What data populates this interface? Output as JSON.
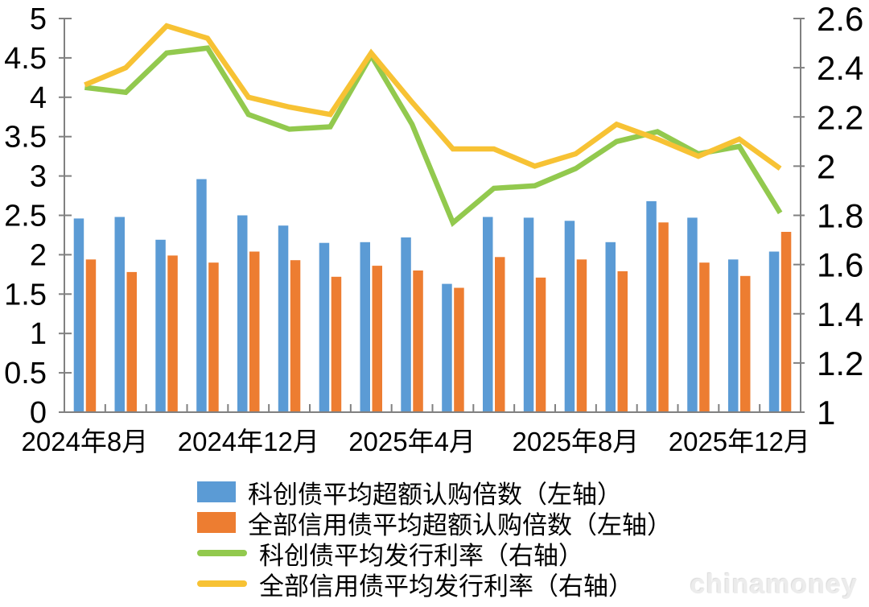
{
  "watermark": "chinamoney",
  "chart_data": {
    "type": "bar+line",
    "dual_axis": true,
    "grid": false,
    "legend_position": "bottom",
    "months": [
      "2024年8月",
      "2024年9月",
      "2024年10月",
      "2024年11月",
      "2024年12月",
      "2025年1月",
      "2025年2月",
      "2025年3月",
      "2025年4月",
      "2025年5月",
      "2025年6月",
      "2025年7月",
      "2025年8月",
      "2025年9月",
      "2025年10月",
      "2025年11月",
      "2025年12月",
      "2026年1月"
    ],
    "x_tick_labels": [
      "2024年8月",
      "2024年12月",
      "2025年4月",
      "2025年8月",
      "2025年12月"
    ],
    "x_tick_label_month_indices": [
      0,
      4,
      8,
      12,
      16
    ],
    "left_axis": {
      "min": 0,
      "max": 5,
      "step": 0.5,
      "ticks": [
        "5",
        "4.5",
        "4",
        "3.5",
        "3",
        "2.5",
        "2",
        "1.5",
        "1",
        "0.5",
        "0"
      ]
    },
    "right_axis": {
      "min": 1,
      "max": 2.6,
      "step": 0.2,
      "ticks": [
        "2.6",
        "2.4",
        "2.2",
        "2",
        "1.8",
        "1.6",
        "1.4",
        "1.2",
        "1"
      ]
    },
    "axis_line_color": "#808080",
    "series": [
      {
        "name": "科创债平均超额认购倍数（左轴）",
        "type": "bar",
        "axis": "left",
        "color": "#5B9BD5",
        "values": [
          2.46,
          2.48,
          2.19,
          2.96,
          2.5,
          2.37,
          2.15,
          2.16,
          2.22,
          1.63,
          2.48,
          2.47,
          2.43,
          2.16,
          2.68,
          2.47,
          1.94,
          2.04
        ]
      },
      {
        "name": "全部信用债平均超额认购倍数（左轴）",
        "type": "bar",
        "axis": "left",
        "color": "#ED7D31",
        "values": [
          1.94,
          1.78,
          1.99,
          1.9,
          2.04,
          1.93,
          1.72,
          1.86,
          1.8,
          1.58,
          1.97,
          1.71,
          1.94,
          1.79,
          2.41,
          1.9,
          1.73,
          2.29
        ]
      },
      {
        "name": "科创债平均发行利率（右轴）",
        "type": "line",
        "axis": "right",
        "color": "#92C94E",
        "values": [
          2.32,
          2.3,
          2.46,
          2.48,
          2.21,
          2.15,
          2.16,
          2.45,
          2.17,
          1.77,
          1.91,
          1.92,
          1.99,
          2.1,
          2.14,
          2.05,
          2.08,
          1.81
        ]
      },
      {
        "name": "全部信用债平均发行利率（右轴）",
        "type": "line",
        "axis": "right",
        "color": "#F7C234",
        "values": [
          2.33,
          2.4,
          2.57,
          2.52,
          2.28,
          2.24,
          2.21,
          2.46,
          2.26,
          2.07,
          2.07,
          2.0,
          2.05,
          2.17,
          2.11,
          2.04,
          2.11,
          1.99
        ]
      }
    ]
  }
}
